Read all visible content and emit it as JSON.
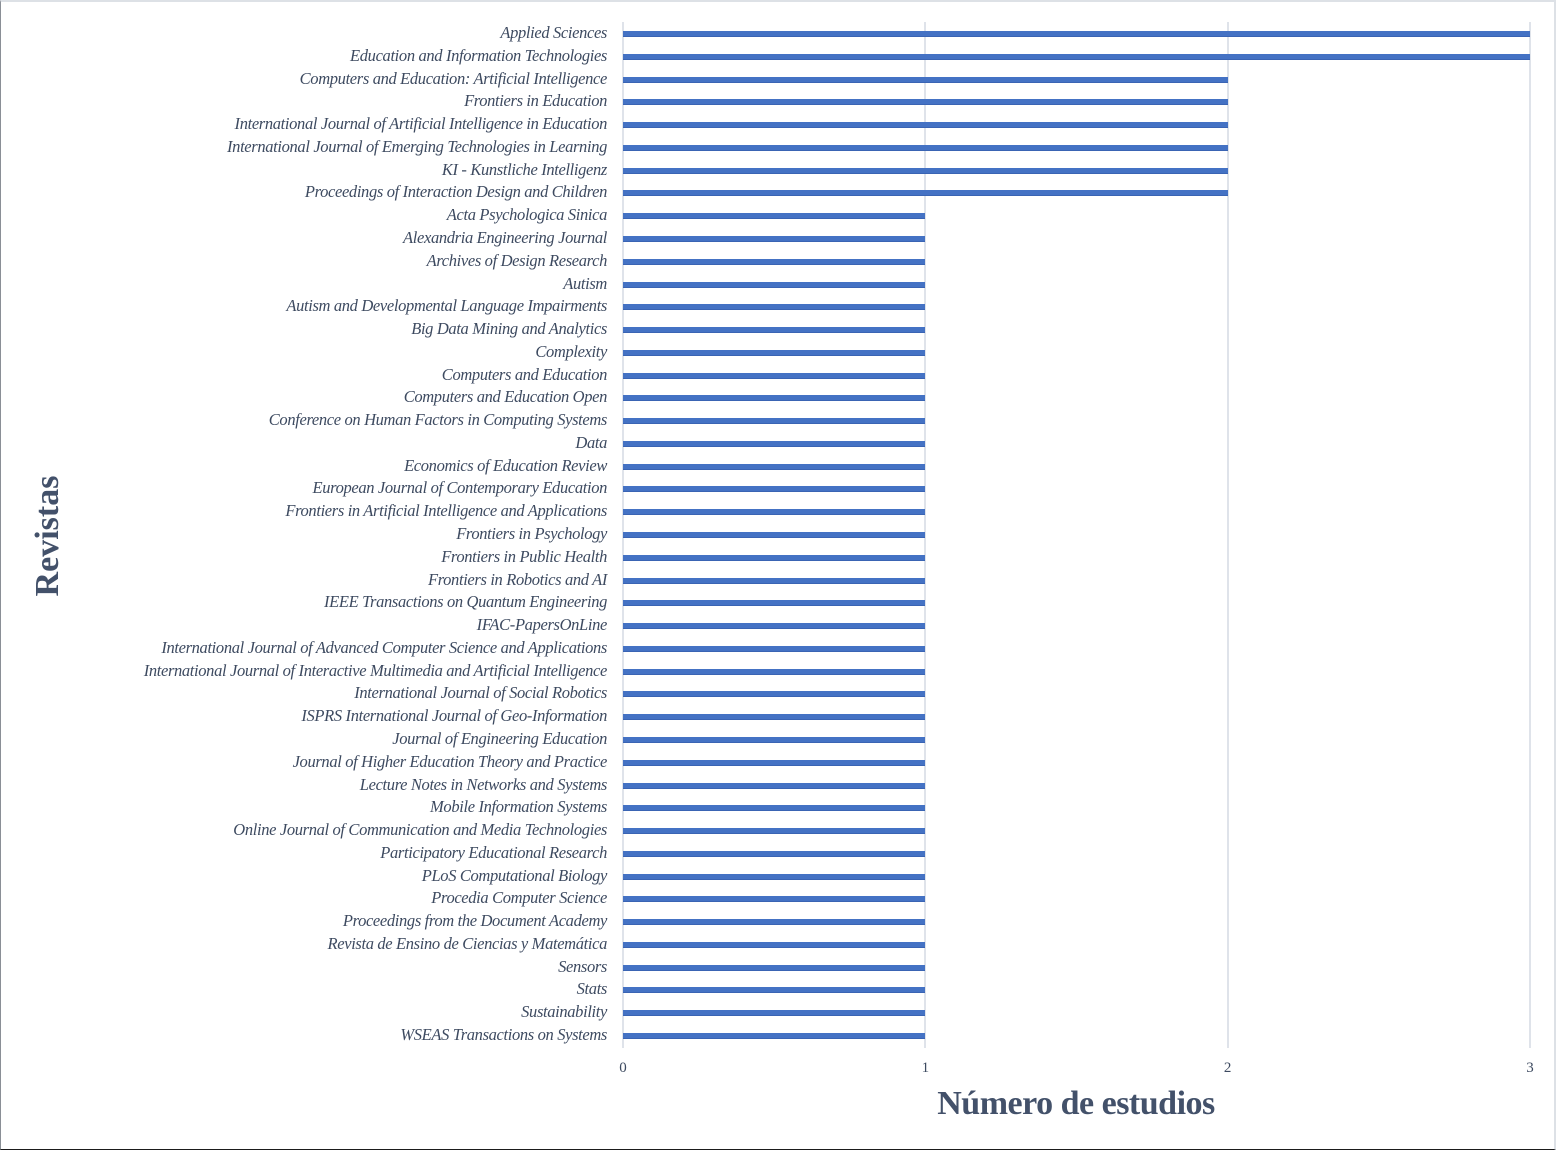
{
  "chart_data": {
    "type": "bar",
    "orientation": "horizontal",
    "title": "",
    "xlabel": "Número de estudios",
    "ylabel": "Revistas",
    "xlim": [
      0,
      3
    ],
    "xticks": [
      "0",
      "1",
      "2",
      "3"
    ],
    "grid": "vertical",
    "legend": "none",
    "bar_color": "#4472c4",
    "categories": [
      "Applied Sciences",
      "Education and Information Technologies",
      "Computers and Education: Artificial Intelligence",
      "Frontiers in Education",
      "International Journal of Artificial Intelligence in Education",
      "International Journal of Emerging Technologies in Learning",
      "KI - Kunstliche Intelligenz",
      "Proceedings of Interaction Design and Children",
      "Acta Psychologica Sinica",
      "Alexandria Engineering Journal",
      "Archives of Design Research",
      "Autism",
      "Autism and Developmental Language Impairments",
      "Big Data Mining and Analytics",
      "Complexity",
      "Computers and Education",
      "Computers and Education Open",
      "Conference on Human Factors in Computing Systems",
      "Data",
      "Economics of Education Review",
      "European Journal of Contemporary Education",
      "Frontiers in Artificial Intelligence and Applications",
      "Frontiers in Psychology",
      "Frontiers in Public Health",
      "Frontiers in Robotics and AI",
      "IEEE Transactions on Quantum Engineering",
      "IFAC-PapersOnLine",
      "International Journal of Advanced Computer Science and Applications",
      "International Journal of Interactive Multimedia and Artificial Intelligence",
      "International Journal of Social Robotics",
      "ISPRS International Journal of Geo-Information",
      "Journal of Engineering Education",
      "Journal of Higher Education Theory and Practice",
      "Lecture Notes in Networks and Systems",
      "Mobile Information Systems",
      "Online Journal of Communication and Media Technologies",
      "Participatory Educational Research",
      "PLoS Computational Biology",
      "Procedia Computer Science",
      "Proceedings from the Document Academy",
      "Revista de Ensino de Ciencias y Matemática",
      "Sensors",
      "Stats",
      "Sustainability",
      "WSEAS Transactions on Systems"
    ],
    "values": [
      3,
      3,
      2,
      2,
      2,
      2,
      2,
      2,
      1,
      1,
      1,
      1,
      1,
      1,
      1,
      1,
      1,
      1,
      1,
      1,
      1,
      1,
      1,
      1,
      1,
      1,
      1,
      1,
      1,
      1,
      1,
      1,
      1,
      1,
      1,
      1,
      1,
      1,
      1,
      1,
      1,
      1,
      1,
      1,
      1
    ]
  }
}
